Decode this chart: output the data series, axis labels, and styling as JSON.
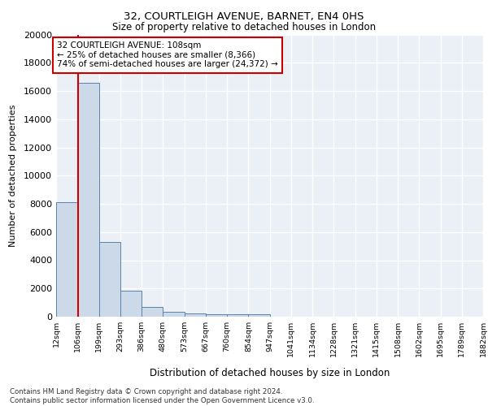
{
  "title1": "32, COURTLEIGH AVENUE, BARNET, EN4 0HS",
  "title2": "Size of property relative to detached houses in London",
  "xlabel": "Distribution of detached houses by size in London",
  "ylabel": "Number of detached properties",
  "bin_labels": [
    "12sqm",
    "106sqm",
    "199sqm",
    "293sqm",
    "386sqm",
    "480sqm",
    "573sqm",
    "667sqm",
    "760sqm",
    "854sqm",
    "947sqm",
    "1041sqm",
    "1134sqm",
    "1228sqm",
    "1321sqm",
    "1415sqm",
    "1508sqm",
    "1602sqm",
    "1695sqm",
    "1789sqm",
    "1882sqm"
  ],
  "bin_edges": [
    12,
    106,
    199,
    293,
    386,
    480,
    573,
    667,
    760,
    854,
    947,
    1041,
    1134,
    1228,
    1321,
    1415,
    1508,
    1602,
    1695,
    1789,
    1882
  ],
  "bar_heights": [
    8100,
    16600,
    5300,
    1850,
    700,
    330,
    240,
    200,
    180,
    150,
    0,
    0,
    0,
    0,
    0,
    0,
    0,
    0,
    0,
    0
  ],
  "bar_color": "#ccd9e8",
  "bar_edge_color": "#5b82aa",
  "property_size": 108,
  "vline_color": "#cc0000",
  "annotation_text": "32 COURTLEIGH AVENUE: 108sqm\n← 25% of detached houses are smaller (8,366)\n74% of semi-detached houses are larger (24,372) →",
  "annotation_box_color": "white",
  "annotation_box_edge": "#cc0000",
  "ylim": [
    0,
    20000
  ],
  "yticks": [
    0,
    2000,
    4000,
    6000,
    8000,
    10000,
    12000,
    14000,
    16000,
    18000,
    20000
  ],
  "footer_line1": "Contains HM Land Registry data © Crown copyright and database right 2024.",
  "footer_line2": "Contains public sector information licensed under the Open Government Licence v3.0.",
  "bg_color": "#eaf0f6",
  "grid_color": "#ffffff"
}
